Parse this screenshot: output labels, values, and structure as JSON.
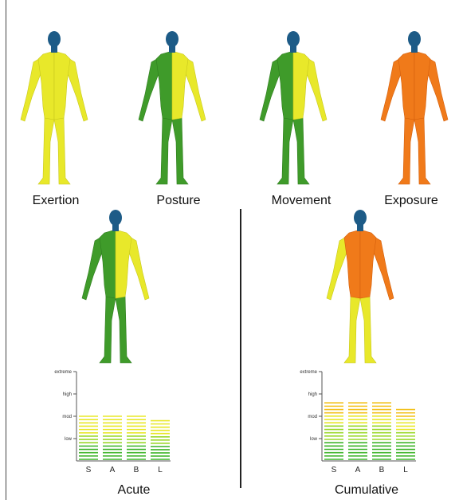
{
  "colors": {
    "head": "#1d5b87",
    "yellow": "#e8e82a",
    "yellow_dark": "#c8c81e",
    "green": "#3f9b2a",
    "green_dark": "#2f7d1e",
    "orange": "#f07a1a",
    "orange_dark": "#d45f0c",
    "axis": "#555555"
  },
  "figures": [
    {
      "id": "exertion",
      "label": "Exertion",
      "left_arm": "yellow",
      "right_arm": "yellow",
      "left_torso": "yellow",
      "right_torso": "yellow",
      "legs": "yellow"
    },
    {
      "id": "posture",
      "label": "Posture",
      "left_arm": "green",
      "right_arm": "yellow",
      "left_torso": "green",
      "right_torso": "yellow",
      "legs": "green"
    },
    {
      "id": "movement",
      "label": "Movement",
      "left_arm": "green",
      "right_arm": "yellow",
      "left_torso": "green",
      "right_torso": "yellow",
      "legs": "green"
    },
    {
      "id": "exposure",
      "label": "Exposure",
      "left_arm": "orange",
      "right_arm": "orange",
      "left_torso": "orange",
      "right_torso": "orange",
      "legs": "orange"
    },
    {
      "id": "acute",
      "label": "Acute",
      "left_arm": "green",
      "right_arm": "yellow",
      "left_torso": "green",
      "right_torso": "yellow",
      "legs": "green"
    },
    {
      "id": "cumulative",
      "label": "Cumulative",
      "left_arm": "yellow",
      "right_arm": "orange",
      "left_torso": "orange",
      "right_torso": "orange",
      "legs": "yellow"
    }
  ],
  "chart_data": [
    {
      "type": "bar",
      "categories": [
        "S",
        "A",
        "B",
        "L"
      ],
      "values": [
        2.0,
        2.0,
        2.0,
        1.8
      ],
      "ytick_labels": [
        "low",
        "mod",
        "high",
        "extreme"
      ],
      "ylim": [
        0,
        4
      ],
      "title": "Acute"
    },
    {
      "type": "bar",
      "categories": [
        "S",
        "A",
        "B",
        "L"
      ],
      "values": [
        2.6,
        2.6,
        2.6,
        2.3
      ],
      "ytick_labels": [
        "low",
        "mod",
        "high",
        "extreme"
      ],
      "ylim": [
        0,
        4
      ],
      "title": "Cumulative"
    }
  ]
}
